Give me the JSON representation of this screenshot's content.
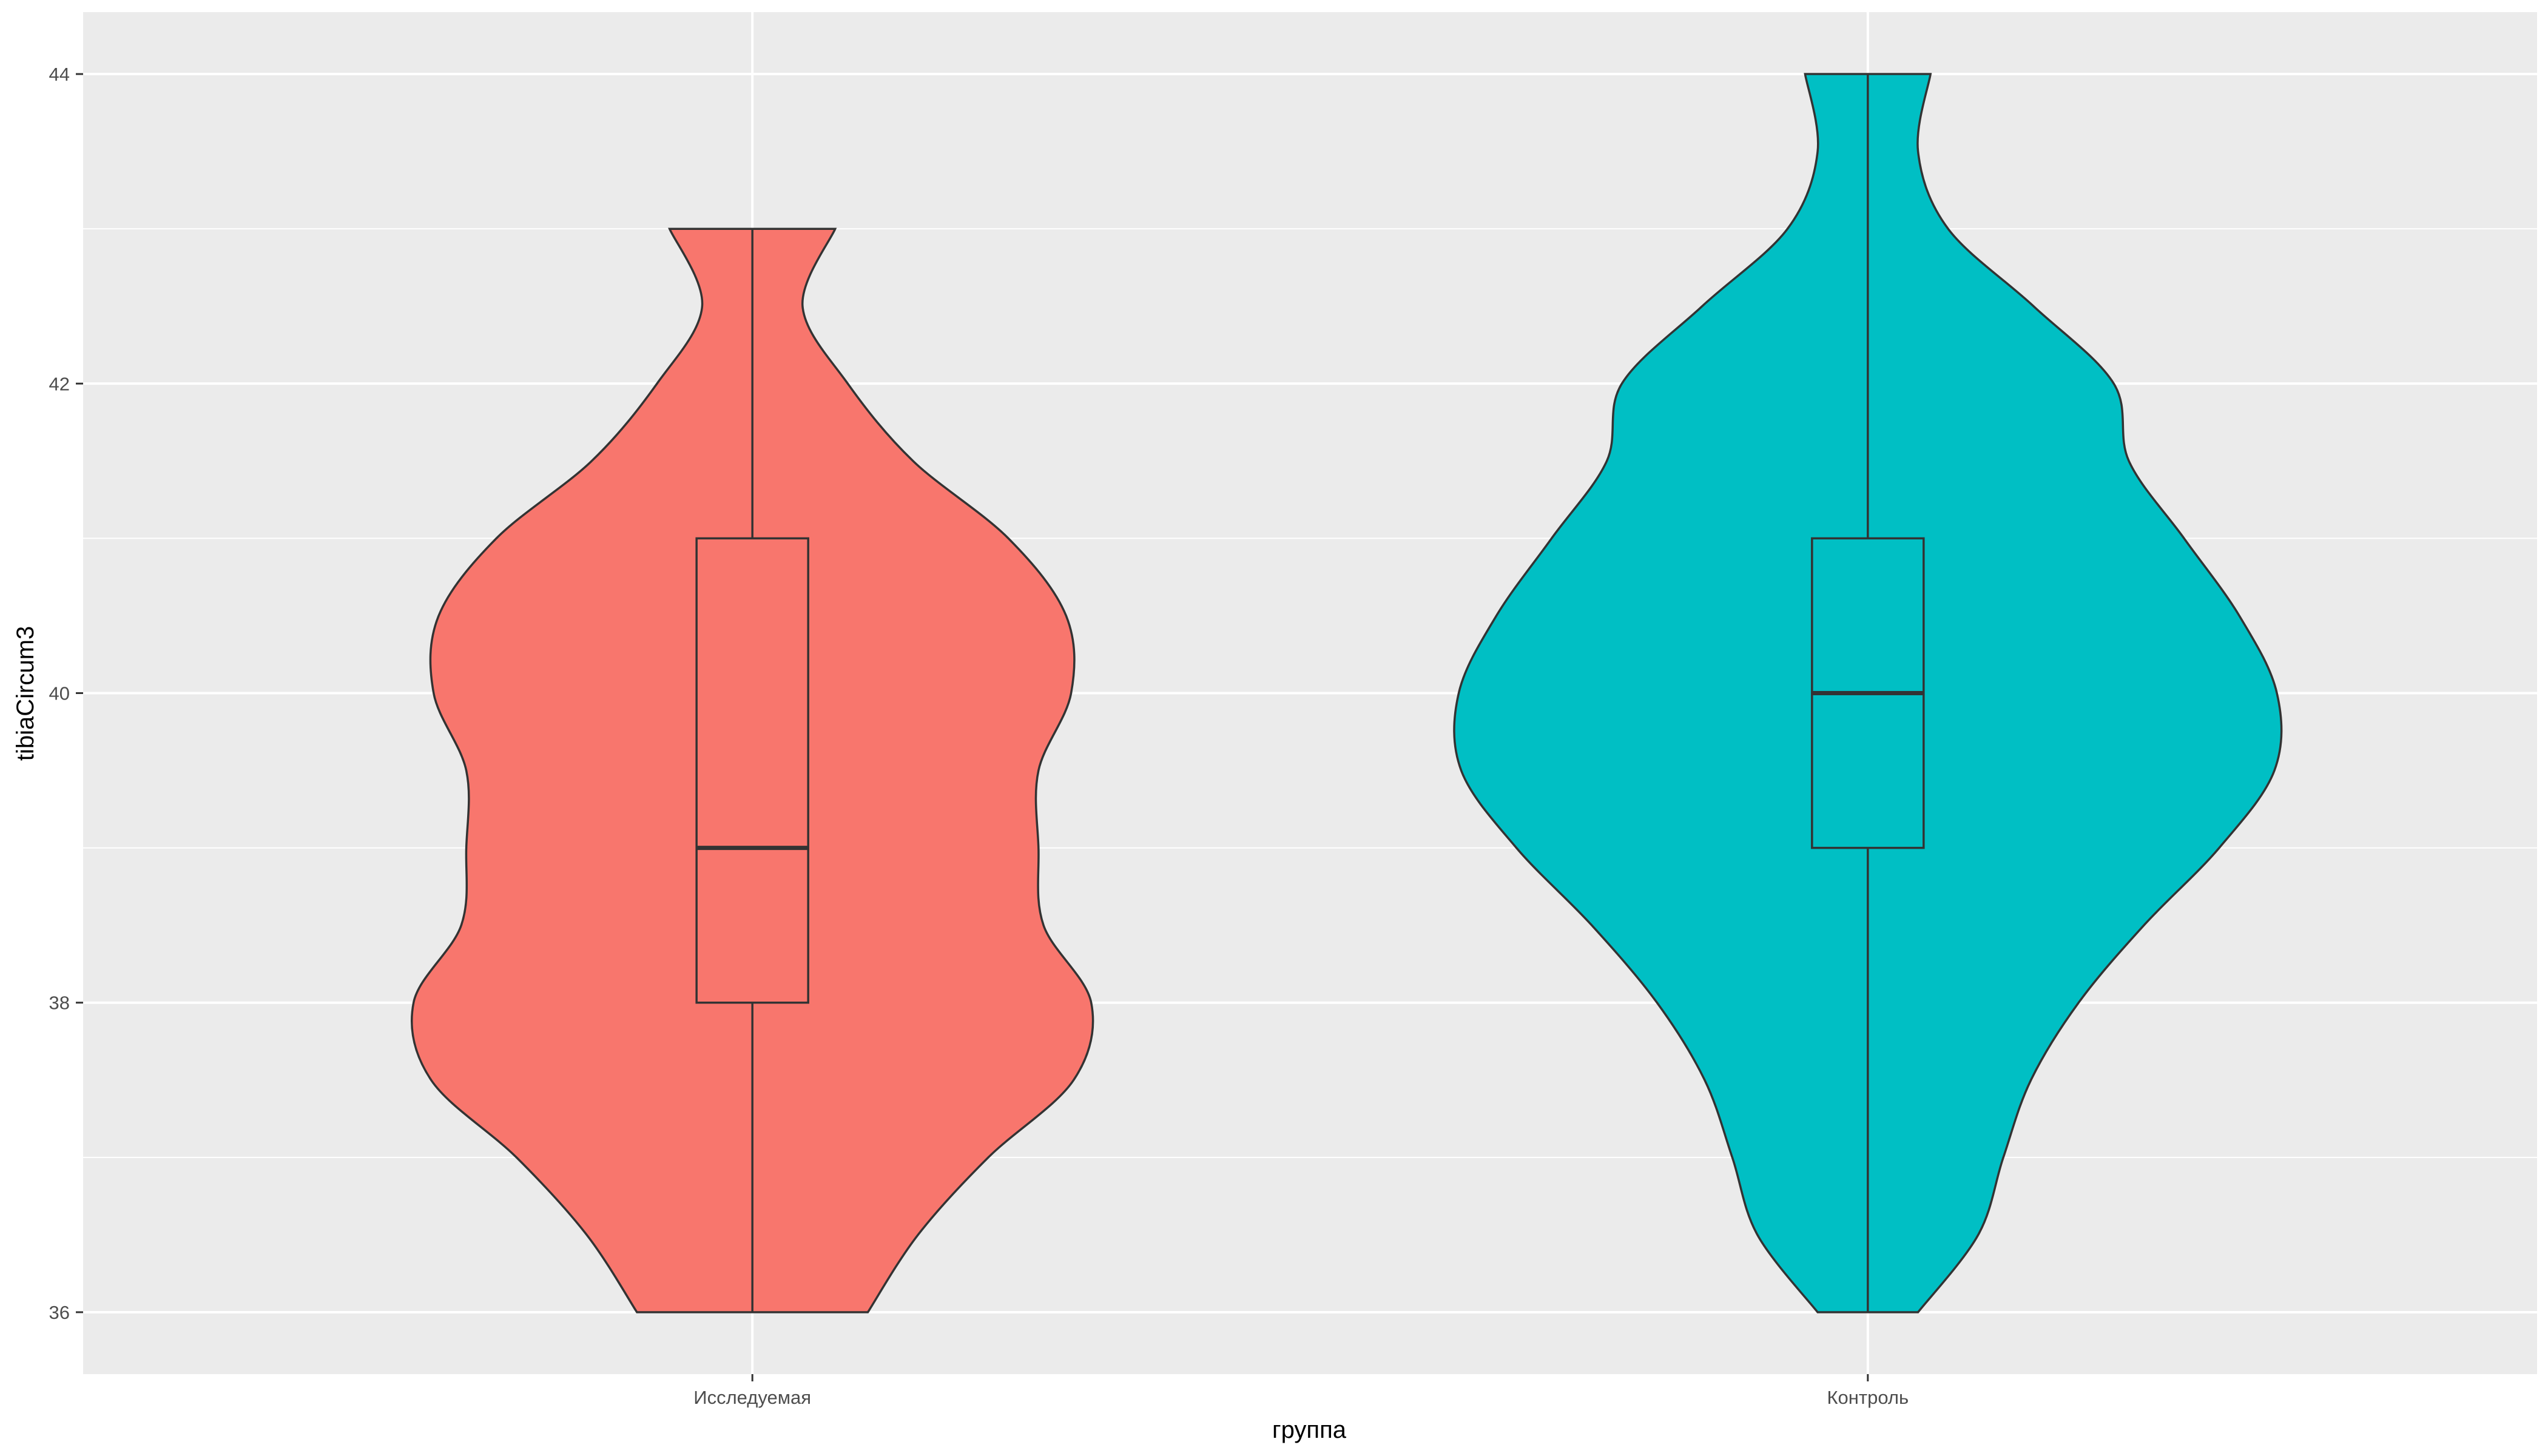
{
  "chart_data": {
    "type": "violin",
    "title": "",
    "xlabel": "группа",
    "ylabel": "tibiaCircum3",
    "ylim": [
      35.6,
      44.4
    ],
    "yticks": [
      36,
      38,
      40,
      42,
      44
    ],
    "grid": true,
    "legend": "none",
    "panel_background": "#EBEBEB",
    "grid_color": "#FFFFFF",
    "outline_color": "#333333",
    "categories": [
      "Исследуемая",
      "Контроль"
    ],
    "series": [
      {
        "category": "Исследуемая",
        "color": "#F8766D",
        "box": {
          "min": 36,
          "q1": 38,
          "median": 39,
          "q3": 41,
          "max": 43
        },
        "density": [
          [
            36.0,
            0.23
          ],
          [
            36.5,
            0.33
          ],
          [
            37.0,
            0.47
          ],
          [
            37.5,
            0.64
          ],
          [
            38.0,
            0.675
          ],
          [
            38.5,
            0.58
          ],
          [
            39.0,
            0.57
          ],
          [
            39.5,
            0.57
          ],
          [
            40.0,
            0.635
          ],
          [
            40.5,
            0.625
          ],
          [
            41.0,
            0.51
          ],
          [
            41.5,
            0.32
          ],
          [
            42.0,
            0.19
          ],
          [
            42.5,
            0.1
          ],
          [
            43.0,
            0.165
          ]
        ]
      },
      {
        "category": "Контроль",
        "color": "#00BFC4",
        "box": {
          "min": 36,
          "q1": 39,
          "median": 40,
          "q3": 41,
          "max": 44
        },
        "density": [
          [
            36.0,
            0.1
          ],
          [
            36.5,
            0.22
          ],
          [
            37.0,
            0.27
          ],
          [
            37.5,
            0.325
          ],
          [
            38.0,
            0.42
          ],
          [
            38.5,
            0.55
          ],
          [
            39.0,
            0.7
          ],
          [
            39.5,
            0.81
          ],
          [
            40.0,
            0.815
          ],
          [
            40.5,
            0.74
          ],
          [
            41.0,
            0.63
          ],
          [
            41.5,
            0.52
          ],
          [
            42.0,
            0.49
          ],
          [
            42.5,
            0.33
          ],
          [
            43.0,
            0.16
          ],
          [
            43.5,
            0.1
          ],
          [
            44.0,
            0.125
          ]
        ]
      }
    ]
  }
}
